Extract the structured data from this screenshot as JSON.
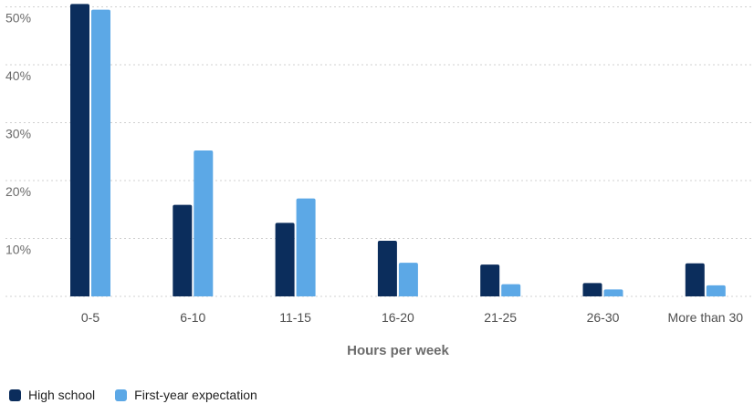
{
  "chart_data": {
    "type": "bar",
    "xlabel": "Hours per week",
    "ylabel": "",
    "ylim": [
      0,
      50
    ],
    "y_ticks": [
      10,
      20,
      30,
      40,
      50
    ],
    "y_tick_labels": [
      "10%",
      "20%",
      "30%",
      "40%",
      "50%"
    ],
    "grid": true,
    "legend_position": "bottom-left",
    "categories": [
      "0-5",
      "6-10",
      "11-15",
      "16-20",
      "21-25",
      "26-30",
      "More than 30"
    ],
    "series": [
      {
        "name": "High school",
        "color": "#0b2d5c",
        "values": [
          50.5,
          15.8,
          12.7,
          9.6,
          5.5,
          2.3,
          5.7
        ]
      },
      {
        "name": "First-year expectation",
        "color": "#5ca8e6",
        "values": [
          49.5,
          25.2,
          16.9,
          5.8,
          2.1,
          1.2,
          1.9
        ]
      }
    ]
  }
}
